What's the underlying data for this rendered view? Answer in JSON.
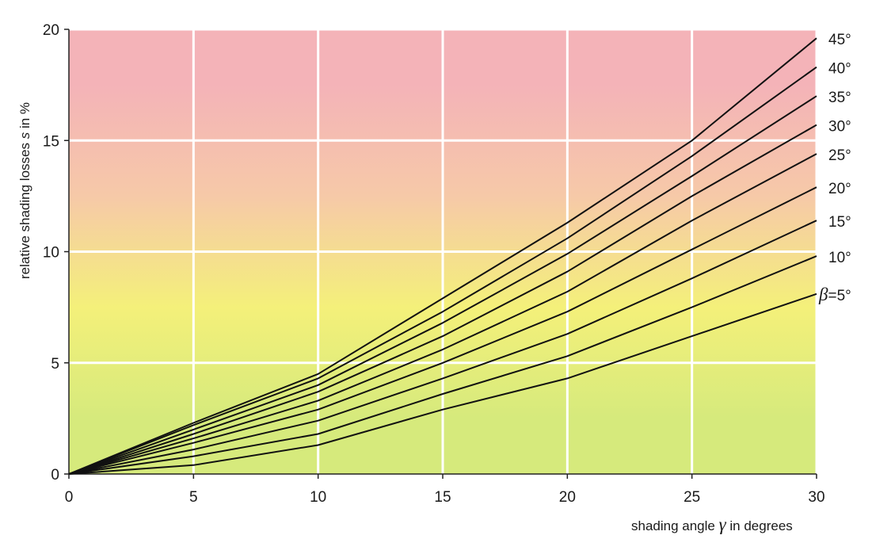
{
  "chart_data": {
    "type": "line",
    "title": "",
    "xlabel_parts": [
      "shading angle ",
      "γ",
      " in degrees"
    ],
    "ylabel_parts": [
      "relative shading losses ",
      "s",
      " in %"
    ],
    "xlim": [
      0,
      30
    ],
    "ylim": [
      0,
      20
    ],
    "xticks": [
      "0",
      "5",
      "10",
      "15",
      "20",
      "25",
      "30"
    ],
    "yticks": [
      "0",
      "5",
      "10",
      "15",
      "20"
    ],
    "grid": true,
    "background_bands": [
      {
        "from": 0,
        "to": 5,
        "color": "#d6ea7c"
      },
      {
        "from": 5,
        "to": 10,
        "color": "#f4f07a"
      },
      {
        "from": 10,
        "to": 15,
        "color": "#f6c9a8"
      },
      {
        "from": 15,
        "to": 20,
        "color": "#f4b3b8"
      }
    ],
    "line_color": "#111111",
    "series_prefix": "β",
    "series": [
      {
        "name": "=5°",
        "x": [
          0,
          5,
          10,
          15,
          20,
          25,
          30
        ],
        "y": [
          0,
          0.4,
          1.3,
          2.9,
          4.3,
          6.2,
          8.1
        ]
      },
      {
        "name": "10°",
        "x": [
          0,
          5,
          10,
          15,
          20,
          25,
          30
        ],
        "y": [
          0,
          0.8,
          1.8,
          3.6,
          5.3,
          7.5,
          9.8
        ]
      },
      {
        "name": "15°",
        "x": [
          0,
          5,
          10,
          15,
          20,
          25,
          30
        ],
        "y": [
          0,
          1.1,
          2.4,
          4.3,
          6.3,
          8.8,
          11.4
        ]
      },
      {
        "name": "20°",
        "x": [
          0,
          5,
          10,
          15,
          20,
          25,
          30
        ],
        "y": [
          0,
          1.4,
          2.9,
          5.0,
          7.3,
          10.1,
          12.9
        ]
      },
      {
        "name": "25°",
        "x": [
          0,
          5,
          10,
          15,
          20,
          25,
          30
        ],
        "y": [
          0,
          1.6,
          3.3,
          5.6,
          8.2,
          11.4,
          14.4
        ]
      },
      {
        "name": "30°",
        "x": [
          0,
          5,
          10,
          15,
          20,
          25,
          30
        ],
        "y": [
          0,
          1.8,
          3.7,
          6.2,
          9.1,
          12.5,
          15.7
        ]
      },
      {
        "name": "35°",
        "x": [
          0,
          5,
          10,
          15,
          20,
          25,
          30
        ],
        "y": [
          0,
          2.0,
          4.0,
          6.8,
          9.9,
          13.4,
          17.0
        ]
      },
      {
        "name": "40°",
        "x": [
          0,
          5,
          10,
          15,
          20,
          25,
          30
        ],
        "y": [
          0,
          2.2,
          4.3,
          7.3,
          10.6,
          14.3,
          18.3
        ]
      },
      {
        "name": "45°",
        "x": [
          0,
          5,
          10,
          15,
          20,
          25,
          30
        ],
        "y": [
          0,
          2.3,
          4.5,
          7.9,
          11.3,
          15.0,
          19.6
        ]
      }
    ]
  }
}
